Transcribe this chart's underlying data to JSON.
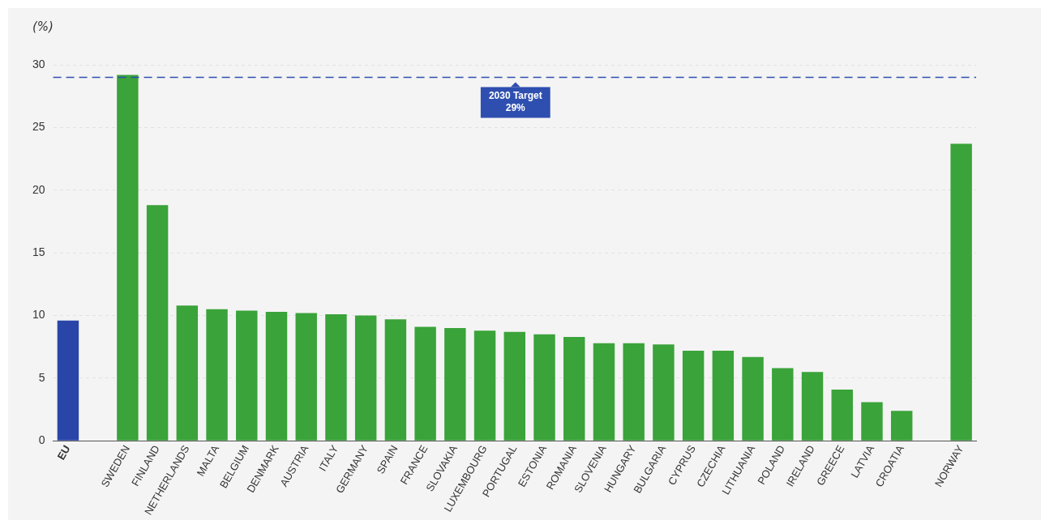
{
  "chart_data": {
    "type": "bar",
    "ylabel": "(%)",
    "categories": [
      "EU",
      null,
      "SWEDEN",
      "FINLAND",
      "NETHERLANDS",
      "MALTA",
      "BELGIUM",
      "DENMARK",
      "AUSTRIA",
      "ITALY",
      "GERMANY",
      "SPAIN",
      "FRANCE",
      "SLOVAKIA",
      "LUXEMBOURG",
      "PORTUGAL",
      "ESTONIA",
      "ROMANIA",
      "SLOVENIA",
      "HUNGARY",
      "BULGARIA",
      "CYPRUS",
      "CZECHIA",
      "LITHUANIA",
      "POLAND",
      "IRELAND",
      "GREECE",
      "LATVIA",
      "CROATIA",
      null,
      "NORWAY"
    ],
    "values": [
      9.6,
      null,
      29.2,
      18.8,
      10.8,
      10.5,
      10.4,
      10.3,
      10.2,
      10.1,
      10.0,
      9.7,
      9.1,
      9.0,
      8.8,
      8.7,
      8.5,
      8.3,
      7.8,
      7.8,
      7.7,
      7.2,
      7.2,
      6.7,
      5.8,
      5.5,
      4.1,
      3.1,
      2.4,
      null,
      23.7
    ],
    "colors": [
      "#2a45a8",
      null,
      "#3aa33a",
      "#3aa33a",
      "#3aa33a",
      "#3aa33a",
      "#3aa33a",
      "#3aa33a",
      "#3aa33a",
      "#3aa33a",
      "#3aa33a",
      "#3aa33a",
      "#3aa33a",
      "#3aa33a",
      "#3aa33a",
      "#3aa33a",
      "#3aa33a",
      "#3aa33a",
      "#3aa33a",
      "#3aa33a",
      "#3aa33a",
      "#3aa33a",
      "#3aa33a",
      "#3aa33a",
      "#3aa33a",
      "#3aa33a",
      "#3aa33a",
      "#3aa33a",
      "#3aa33a",
      null,
      "#3aa33a"
    ],
    "ylim": [
      0,
      30
    ],
    "yticks": [
      0,
      5,
      10,
      15,
      20,
      25,
      30
    ],
    "grid": "y",
    "ref_lines": [
      {
        "axis": "y",
        "value": 29,
        "label": "2030 Target\n29%",
        "color": "#2e4fb0",
        "line_style": "dashed"
      }
    ]
  }
}
